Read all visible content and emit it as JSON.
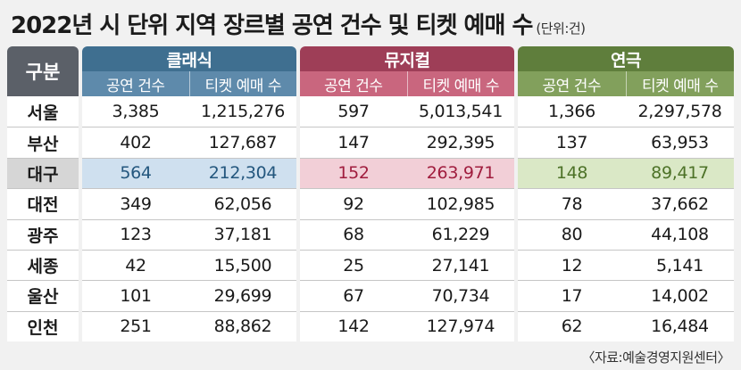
{
  "title": "2022년 시 단위 지역 장르별 공연 건수 및 티켓 예매 수",
  "unit": "(단위:건)",
  "label_header": "구분",
  "groups": {
    "classic": {
      "name": "클래식",
      "sub": [
        "공연 건수",
        "티켓 예매 수"
      ],
      "color": "#3f6f90"
    },
    "musical": {
      "name": "뮤지컬",
      "sub": [
        "공연 건수",
        "티켓 예매 수"
      ],
      "color": "#9e3e57"
    },
    "drama": {
      "name": "연극",
      "sub": [
        "공연 건수",
        "티켓 예매 수"
      ],
      "color": "#5f7e3c"
    }
  },
  "highlight_region": "대구",
  "rows": [
    {
      "region": "서울",
      "classic": [
        "3,385",
        "1,215,276"
      ],
      "musical": [
        "597",
        "5,013,541"
      ],
      "drama": [
        "1,366",
        "2,297,578"
      ]
    },
    {
      "region": "부산",
      "classic": [
        "402",
        "127,687"
      ],
      "musical": [
        "147",
        "292,395"
      ],
      "drama": [
        "137",
        "63,953"
      ]
    },
    {
      "region": "대구",
      "classic": [
        "564",
        "212,304"
      ],
      "musical": [
        "152",
        "263,971"
      ],
      "drama": [
        "148",
        "89,417"
      ]
    },
    {
      "region": "대전",
      "classic": [
        "349",
        "62,056"
      ],
      "musical": [
        "92",
        "102,985"
      ],
      "drama": [
        "78",
        "37,662"
      ]
    },
    {
      "region": "광주",
      "classic": [
        "123",
        "37,181"
      ],
      "musical": [
        "68",
        "61,229"
      ],
      "drama": [
        "80",
        "44,108"
      ]
    },
    {
      "region": "세종",
      "classic": [
        "42",
        "15,500"
      ],
      "musical": [
        "25",
        "27,141"
      ],
      "drama": [
        "12",
        "5,141"
      ]
    },
    {
      "region": "울산",
      "classic": [
        "101",
        "29,699"
      ],
      "musical": [
        "67",
        "70,734"
      ],
      "drama": [
        "17",
        "14,002"
      ]
    },
    {
      "region": "인천",
      "classic": [
        "251",
        "88,862"
      ],
      "musical": [
        "142",
        "127,974"
      ],
      "drama": [
        "62",
        "16,484"
      ]
    }
  ],
  "source": "〈자료:예술경영지원센터〉"
}
